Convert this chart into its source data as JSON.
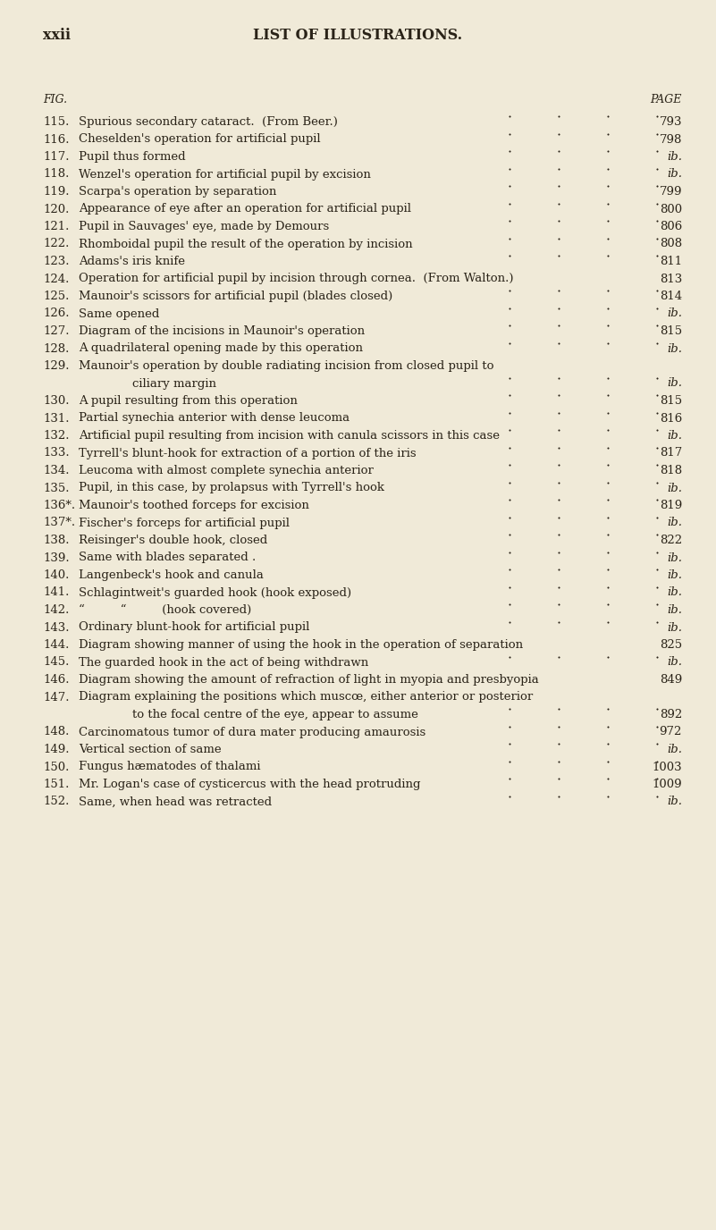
{
  "background_color": "#f0ead8",
  "text_color": "#2a2318",
  "page_left_label": "xxii",
  "page_title": "LIST OF ILLUSTRATIONS.",
  "col_fig_label": "FIG.",
  "col_page_label": "PAGE",
  "figsize": [
    8.01,
    13.76
  ],
  "dpi": 100,
  "entries": [
    {
      "num": "115.",
      "text": "Spurious secondary cataract.  (From Beer.)",
      "dots": true,
      "page": "793"
    },
    {
      "num": "116.",
      "text": "Cheselden's operation for artificial pupil",
      "dots": true,
      "page": "798"
    },
    {
      "num": "117.",
      "text": "Pupil thus formed",
      "dots": true,
      "page": "ib."
    },
    {
      "num": "118.",
      "text": "Wenzel's operation for artificial pupil by excision",
      "dots": true,
      "page": "ib."
    },
    {
      "num": "119.",
      "text": "Scarpa's operation by separation",
      "dots": true,
      "page": "799"
    },
    {
      "num": "120.",
      "text": "Appearance of eye after an operation for artificial pupil",
      "dots": true,
      "page": "800"
    },
    {
      "num": "121.",
      "text": "Pupil in Sauvages' eye, made by Demours",
      "dots": true,
      "page": "806"
    },
    {
      "num": "122.",
      "text": "Rhomboidal pupil the result of the operation by incision",
      "dots": true,
      "page": "808"
    },
    {
      "num": "123.",
      "text": "Adams's iris knife",
      "dots": true,
      "page": "811"
    },
    {
      "num": "124.",
      "text": "Operation for artificial pupil by incision through cornea.  (From Walton.)",
      "dots": false,
      "page": "813"
    },
    {
      "num": "125.",
      "text": "Maunoir's scissors for artificial pupil (blades closed)",
      "dots": true,
      "page": "814"
    },
    {
      "num": "126.",
      "text": "Same opened",
      "dots": true,
      "page": "ib."
    },
    {
      "num": "127.",
      "text": "Diagram of the incisions in Maunoir's operation",
      "dots": true,
      "page": "815"
    },
    {
      "num": "128.",
      "text": "A quadrilateral opening made by this operation",
      "dots": true,
      "page": "ib."
    },
    {
      "num": "129.",
      "text": "Maunoir's operation by double radiating incision from closed pupil to",
      "dots": false,
      "page": "",
      "continuation": "ciliary margin",
      "cont_dots": true,
      "cont_page": "ib."
    },
    {
      "num": "130.",
      "text": "A pupil resulting from this operation",
      "dots": true,
      "page": "815"
    },
    {
      "num": "131.",
      "text": "Partial synechia anterior with dense leucoma",
      "dots": true,
      "page": "816"
    },
    {
      "num": "132.",
      "text": "Artificial pupil resulting from incision with canula scissors in this case",
      "dots": true,
      "page": "ib."
    },
    {
      "num": "133.",
      "text": "Tyrrell's blunt-hook for extraction of a portion of the iris",
      "dots": true,
      "page": "817"
    },
    {
      "num": "134.",
      "text": "Leucoma with almost complete synechia anterior",
      "dots": true,
      "page": "818"
    },
    {
      "num": "135.",
      "text": "Pupil, in this case, by prolapsus with Tyrrell's hook",
      "dots": true,
      "page": "ib."
    },
    {
      "num": "136*.",
      "text": "Maunoir's toothed forceps for excision",
      "dots": true,
      "page": "819"
    },
    {
      "num": "137*.",
      "text": "Fischer's forceps for artificial pupil",
      "dots": true,
      "page": "ib."
    },
    {
      "num": "138.",
      "text": "Reisinger's double hook, closed",
      "dots": true,
      "page": "822"
    },
    {
      "num": "139.",
      "text": "Same with blades separated .",
      "dots": true,
      "page": "ib."
    },
    {
      "num": "140.",
      "text": "Langenbeck's hook and canula",
      "dots": true,
      "page": "ib."
    },
    {
      "num": "141.",
      "text": "Schlagintweit's guarded hook (hook exposed)",
      "dots": true,
      "page": "ib."
    },
    {
      "num": "142.",
      "text": "“   “   (hook covered)",
      "dots": true,
      "page": "ib."
    },
    {
      "num": "143.",
      "text": "Ordinary blunt-hook for artificial pupil",
      "dots": true,
      "page": "ib."
    },
    {
      "num": "144.",
      "text": "Diagram showing manner of using the hook in the operation of separation",
      "dots": false,
      "page": "825"
    },
    {
      "num": "145.",
      "text": "The guarded hook in the act of being withdrawn",
      "dots": true,
      "page": "ib."
    },
    {
      "num": "146.",
      "text": "Diagram showing the amount of refraction of light in myopia and presbyopia",
      "dots": false,
      "page": "849"
    },
    {
      "num": "147.",
      "text": "Diagram explaining the positions which muscœ, either anterior or posterior",
      "dots": false,
      "page": "",
      "continuation": "to the focal centre of the eye, appear to assume",
      "cont_dots": true,
      "cont_page": "892"
    },
    {
      "num": "148.",
      "text": "Carcinomatous tumor of dura mater producing amaurosis",
      "dots": true,
      "page": "972"
    },
    {
      "num": "149.",
      "text": "Vertical section of same",
      "dots": true,
      "page": "ib."
    },
    {
      "num": "150.",
      "text": "Fungus hæmatodes of thalami",
      "dots": true,
      "page": "1003"
    },
    {
      "num": "151.",
      "text": "Mr. Logan's case of cysticercus with the head protruding",
      "dots": true,
      "page": "1009"
    },
    {
      "num": "152.",
      "text": "Same, when head was retracted",
      "dots": true,
      "page": "ib."
    }
  ]
}
